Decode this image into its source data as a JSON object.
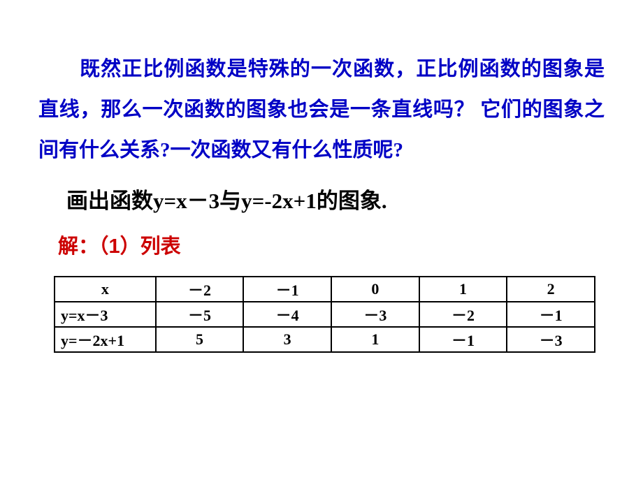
{
  "intro": {
    "text": "既然正比例函数是特殊的一次函数，正比例函数的图象是直线，那么一次函数的图象也会是一条直线吗？ 它们的图象之间有什么关系?一次函数又有什么性质呢?"
  },
  "instruction": "画出函数y=x－3与y=-2x+1的图象.",
  "solution_label": "解：（1）列表",
  "table": {
    "header": [
      "x",
      "－2",
      "－1",
      "0",
      "1",
      "2"
    ],
    "rows": [
      {
        "label": "y=x－3",
        "cells": [
          "－5",
          "－4",
          "－3",
          "－2",
          "－1"
        ]
      },
      {
        "label": "y=－2x+1",
        "cells": [
          "5",
          "3",
          "1",
          "－1",
          "－3"
        ]
      }
    ]
  },
  "colors": {
    "intro_text": "#0000c5",
    "body_text": "#000000",
    "solution_text": "#cc0000",
    "border": "#000000",
    "background": "#ffffff"
  },
  "fonts": {
    "intro_size": 29,
    "instruction_size": 31,
    "solution_size": 29,
    "table_size": 22
  }
}
